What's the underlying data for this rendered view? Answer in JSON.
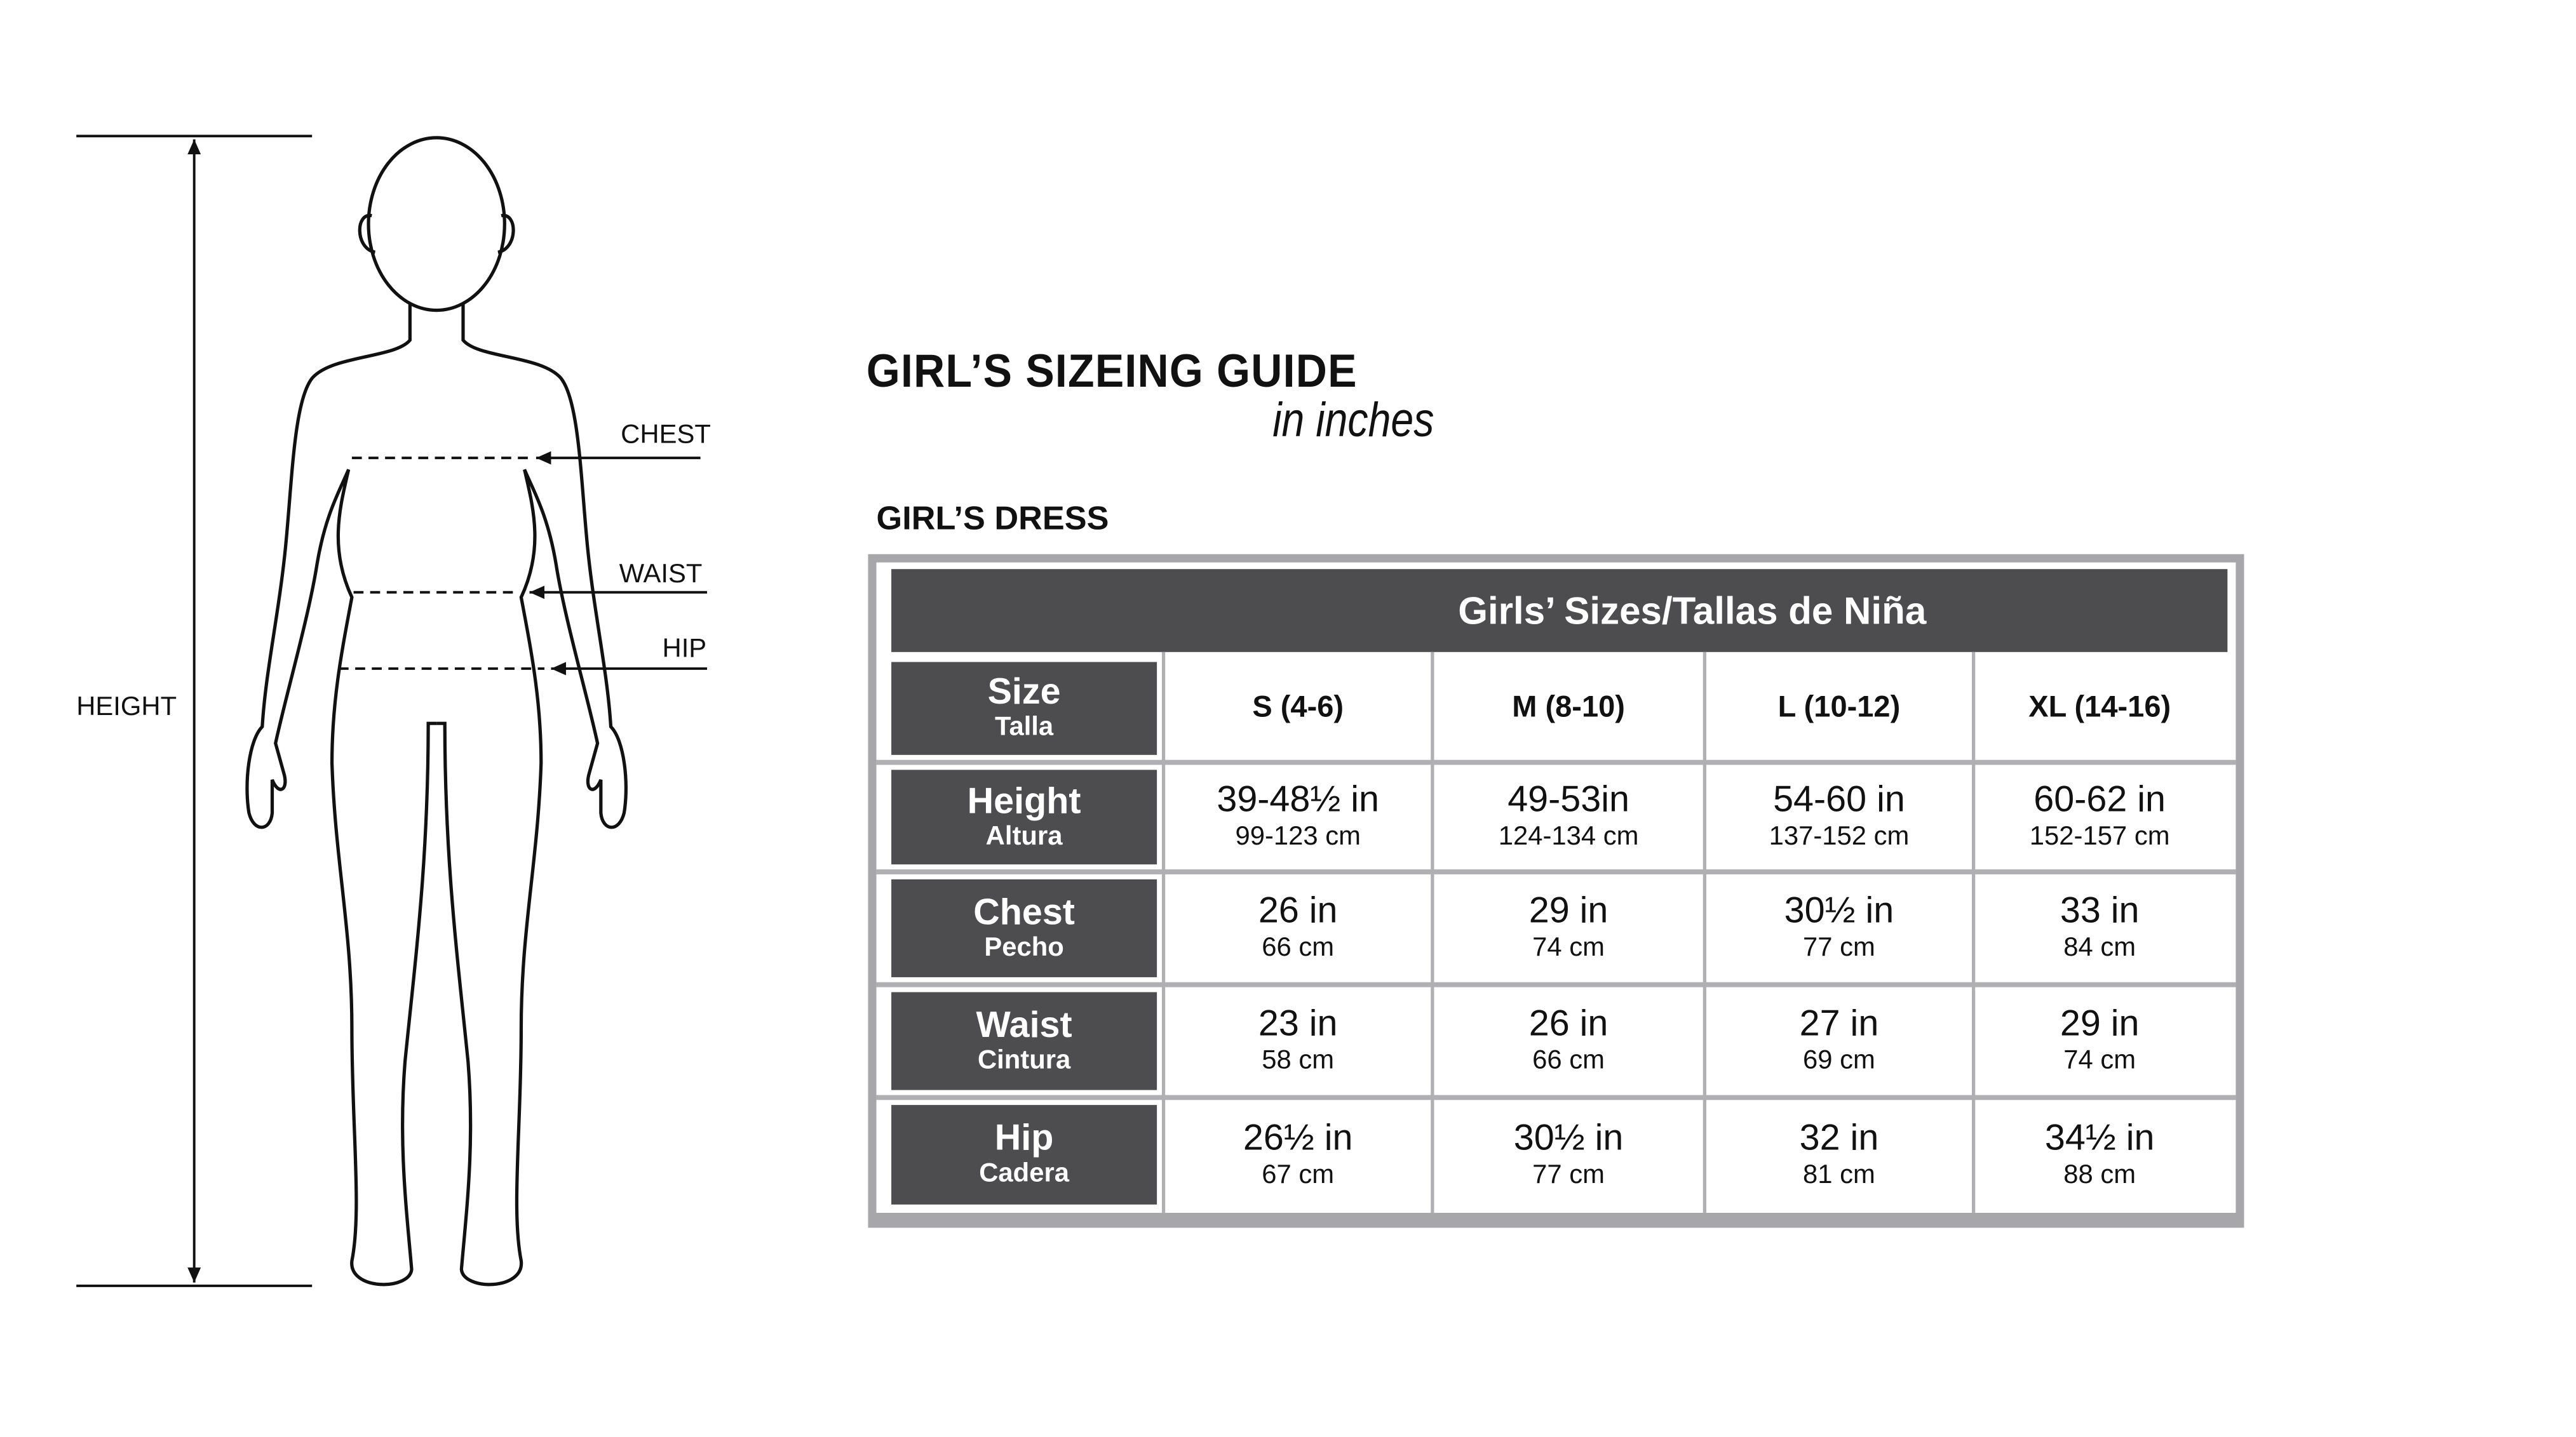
{
  "figure": {
    "labels": {
      "height": "HEIGHT",
      "chest": "CHEST",
      "waist": "WAIST",
      "hip": "HIP"
    }
  },
  "guide": {
    "title": "GIRL’S SIZEING GUIDE",
    "subtitle": "in inches",
    "section": "GIRL’S DRESS"
  },
  "table": {
    "header": "Girls’ Sizes/Tallas de Niña",
    "size_label": {
      "main": "Size",
      "sub": "Talla"
    },
    "sizes": [
      "S (4-6)",
      "M (8-10)",
      "L (10-12)",
      "XL (14-16)"
    ],
    "rows": [
      {
        "label": "Height",
        "label_es": "Altura",
        "values": [
          {
            "in": "39-48½ in",
            "cm": "99-123 cm"
          },
          {
            "in": "49-53in",
            "cm": "124-134 cm"
          },
          {
            "in": "54-60 in",
            "cm": "137-152 cm"
          },
          {
            "in": "60-62 in",
            "cm": "152-157 cm"
          }
        ]
      },
      {
        "label": "Chest",
        "label_es": "Pecho",
        "values": [
          {
            "in": "26 in",
            "cm": "66 cm"
          },
          {
            "in": "29 in",
            "cm": "74 cm"
          },
          {
            "in": "30½ in",
            "cm": "77 cm"
          },
          {
            "in": "33 in",
            "cm": "84 cm"
          }
        ]
      },
      {
        "label": "Waist",
        "label_es": "Cintura",
        "values": [
          {
            "in": "23 in",
            "cm": "58 cm"
          },
          {
            "in": "26 in",
            "cm": "66 cm"
          },
          {
            "in": "27 in",
            "cm": "69 cm"
          },
          {
            "in": "29 in",
            "cm": "74 cm"
          }
        ]
      },
      {
        "label": "Hip",
        "label_es": "Cadera",
        "values": [
          {
            "in": "26½ in",
            "cm": "67 cm"
          },
          {
            "in": "30½ in",
            "cm": "77  cm"
          },
          {
            "in": "32 in",
            "cm": "81 cm"
          },
          {
            "in": "34½ in",
            "cm": "88 cm"
          }
        ]
      }
    ]
  },
  "colors": {
    "label_bg": "#4d4d4f",
    "border": "#a7a7a9"
  }
}
